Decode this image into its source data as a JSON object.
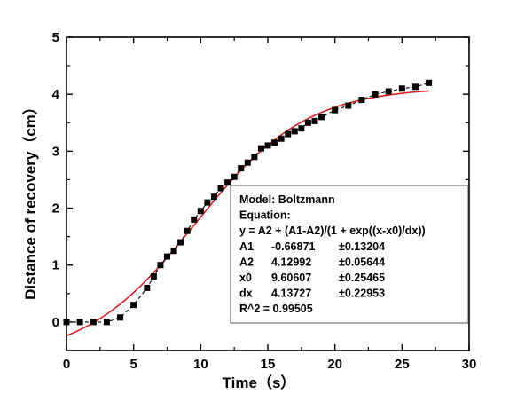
{
  "chart_data": {
    "type": "scatter",
    "xlabel": "Time（s）",
    "ylabel": "Distance of recovery（cm）",
    "xlim": [
      0,
      30
    ],
    "ylim": [
      -0.5,
      5
    ],
    "x_ticks": [
      0,
      5,
      10,
      15,
      20,
      25,
      30
    ],
    "y_ticks": [
      0,
      1,
      2,
      3,
      4,
      5
    ],
    "grid": false,
    "legend": "none",
    "colors": {
      "markers": "#000000",
      "fit_curve": "#e02020",
      "axes": "#000000"
    },
    "series": [
      {
        "marker": "square",
        "line": "dashed",
        "x": [
          0,
          1,
          2,
          3,
          4,
          5,
          6,
          6.5,
          7,
          7.5,
          8,
          8.5,
          9,
          9.5,
          10,
          10.5,
          11,
          11.5,
          12,
          12.5,
          13,
          13.5,
          14,
          14.5,
          15,
          15.5,
          16,
          16.5,
          17,
          17.5,
          18,
          18.5,
          19,
          20,
          21,
          22,
          23,
          24,
          25,
          26,
          27
        ],
        "y": [
          0,
          0,
          0,
          0,
          0.08,
          0.3,
          0.6,
          0.8,
          1.0,
          1.15,
          1.25,
          1.4,
          1.6,
          1.8,
          1.95,
          2.1,
          2.2,
          2.35,
          2.45,
          2.55,
          2.7,
          2.8,
          2.9,
          3.05,
          3.1,
          3.15,
          3.22,
          3.3,
          3.35,
          3.4,
          3.5,
          3.53,
          3.6,
          3.72,
          3.8,
          3.9,
          4.0,
          4.05,
          4.1,
          4.13,
          4.2
        ]
      }
    ],
    "fit": {
      "model": "boltzmann",
      "A1": -0.66871,
      "A2": 4.12992,
      "x0": 9.60607,
      "dx": 4.13727,
      "x_range": [
        0,
        27
      ]
    },
    "annotation": {
      "lines": [
        "Model: Boltzmann",
        "Equation:",
        "y = A2 + (A1-A2)/(1 + exp((x-x0)/dx))"
      ],
      "params": [
        {
          "name": "A1",
          "value": "-0.66871",
          "error": "±0.13204"
        },
        {
          "name": "A2",
          "value": "4.12992",
          "error": "±0.05644"
        },
        {
          "name": "x0",
          "value": "9.60607",
          "error": "±0.25465"
        },
        {
          "name": "dx",
          "value": "4.13727",
          "error": "±0.22953"
        }
      ],
      "r2": "R^2  =  0.99505"
    }
  }
}
